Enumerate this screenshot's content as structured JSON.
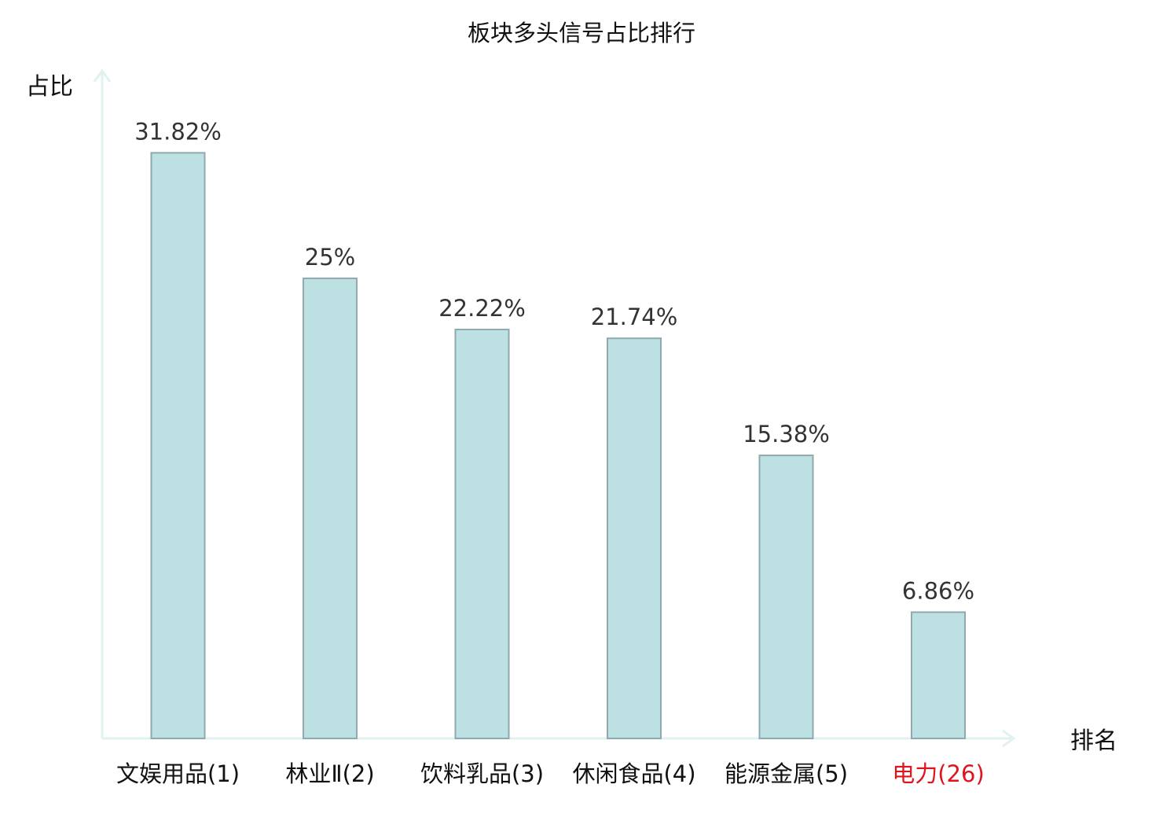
{
  "chart_data": {
    "type": "bar",
    "title": "板块多头信号占比排行",
    "ylabel": "占比",
    "xlabel": "排名",
    "categories": [
      "文娱用品(1)",
      "林业Ⅱ(2)",
      "饮料乳品(3)",
      "休闲食品(4)",
      "能源金属(5)",
      "电力(26)"
    ],
    "values": [
      31.82,
      25,
      22.22,
      21.74,
      15.38,
      6.86
    ],
    "value_labels": [
      "31.82%",
      "25%",
      "22.22%",
      "21.74%",
      "15.38%",
      "6.86%"
    ],
    "highlight_index": 5,
    "ylim": [
      0,
      33.5
    ],
    "grid": false,
    "legend": "none",
    "colors": {
      "bar_fill": "#bde0e2",
      "bar_stroke": "#8faaae",
      "axis": "#e0f2f0",
      "text": "#333333",
      "label": "#111111",
      "highlight": "#e0141e"
    }
  }
}
